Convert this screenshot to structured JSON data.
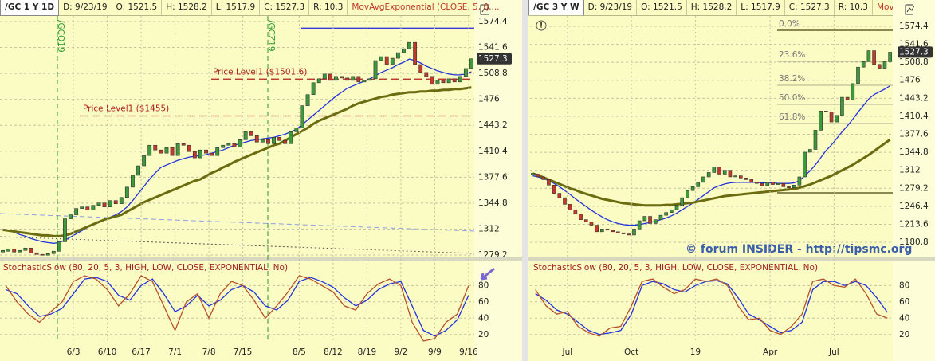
{
  "chart_data": [
    {
      "type": "candlestick",
      "title": "/GC 1 Y 1D",
      "info": [
        "D: 9/23/19",
        "O: 1521.5",
        "H: 1528.2",
        "L: 1517.9",
        "C: 1527.3",
        "R: 10.3"
      ],
      "study": "MovAvgExponential (CLOSE, 5, 0,...",
      "values": [
        1284,
        1287,
        1283,
        1285,
        1288,
        1282,
        1280,
        1279,
        1281,
        1284,
        1296,
        1325,
        1330,
        1338,
        1340,
        1336,
        1342,
        1345,
        1340,
        1348,
        1344,
        1352,
        1365,
        1380,
        1392,
        1405,
        1418,
        1412,
        1408,
        1415,
        1405,
        1420,
        1418,
        1410,
        1402,
        1412,
        1408,
        1405,
        1415,
        1418,
        1420,
        1416,
        1425,
        1435,
        1430,
        1422,
        1425,
        1420,
        1428,
        1424,
        1420,
        1435,
        1440,
        1468,
        1482,
        1497,
        1502,
        1508,
        1500,
        1505,
        1503,
        1500,
        1505,
        1498,
        1500,
        1502,
        1525,
        1530,
        1520,
        1528,
        1535,
        1540,
        1548,
        1520,
        1510,
        1505,
        1495,
        1500,
        1497,
        1502,
        1498,
        1505,
        1515,
        1527.3
      ],
      "up_color": "#3c9a3c",
      "down_color": "#c0392b",
      "series": [
        {
          "color": "#2233dd",
          "values": [
            1312,
            1310,
            1308,
            1305,
            1303,
            1300,
            1298,
            1296,
            1295,
            1294,
            1295,
            1298,
            1302,
            1306,
            1310,
            1314,
            1318,
            1321,
            1324,
            1327,
            1330,
            1334,
            1340,
            1348,
            1357,
            1366,
            1375,
            1383,
            1390,
            1393,
            1396,
            1399,
            1401,
            1403,
            1404,
            1405,
            1406,
            1408,
            1410,
            1412,
            1415,
            1418,
            1420,
            1422,
            1424,
            1425,
            1426,
            1427,
            1428,
            1430,
            1432,
            1435,
            1438,
            1444,
            1450,
            1456,
            1462,
            1468,
            1474,
            1480,
            1485,
            1490,
            1493,
            1496,
            1499,
            1502,
            1506,
            1510,
            1513,
            1516,
            1520,
            1523,
            1527,
            1525,
            1522,
            1518,
            1515,
            1512,
            1510,
            1508,
            1507,
            1507,
            1508,
            1511
          ]
        },
        {
          "color": "#6b6b10",
          "values": [
            1311,
            1310,
            1309,
            1308,
            1307,
            1306,
            1305,
            1304,
            1304,
            1303,
            1303,
            1304,
            1306,
            1309,
            1312,
            1315,
            1318,
            1321,
            1324,
            1326,
            1328,
            1330,
            1334,
            1338,
            1342,
            1346,
            1349,
            1352,
            1355,
            1358,
            1361,
            1364,
            1367,
            1370,
            1373,
            1375,
            1379,
            1383,
            1386,
            1390,
            1393,
            1397,
            1400,
            1403,
            1406,
            1409,
            1412,
            1415,
            1418,
            1420,
            1424,
            1428,
            1432,
            1436,
            1440,
            1445,
            1449,
            1452,
            1455,
            1458,
            1461,
            1464,
            1468,
            1471,
            1473,
            1475,
            1477,
            1479,
            1480,
            1482,
            1483,
            1484,
            1485,
            1485,
            1486,
            1486,
            1487,
            1487,
            1488,
            1488,
            1489,
            1489,
            1490,
            1491
          ]
        }
      ],
      "ylim": [
        1277.2,
        1601.6
      ],
      "yticks": [
        1574.4,
        1541.6,
        1508.8,
        1476,
        1443.2,
        1410.4,
        1377.6,
        1344.8,
        1312,
        1279.2
      ],
      "grid": true,
      "last_price": 1527.3,
      "levels": [
        {
          "label": "Price Level1 ($1501.6)",
          "value": 1501.6
        },
        {
          "label": "Price Level1 ($1455)",
          "value": 1455
        }
      ],
      "lines": [
        {
          "value": 1566,
          "color": "#3a3adc"
        }
      ],
      "markers": [
        "/GCQ19",
        "/GCZ19"
      ]
    },
    {
      "type": "line",
      "title": "StochasticSlow (80, 20, 5, 3, HIGH, LOW, CLOSE, EXPONENTIAL, No)",
      "categories": [
        null,
        null,
        null,
        null,
        null,
        null,
        "6/3",
        null,
        null,
        "6/10",
        null,
        null,
        "6/17",
        null,
        null,
        "7/1",
        null,
        null,
        "7/8",
        null,
        null,
        "7/15",
        null,
        null,
        null,
        null,
        "8/5",
        null,
        null,
        "8/12",
        null,
        null,
        "8/19",
        null,
        null,
        "9/2",
        null,
        null,
        "9/9",
        null,
        null,
        "9/16"
      ],
      "series": [
        {
          "color": "#2233dd",
          "values": [
            75,
            70,
            55,
            42,
            45,
            52,
            70,
            88,
            90,
            85,
            68,
            62,
            80,
            88,
            70,
            48,
            55,
            68,
            55,
            62,
            75,
            80,
            72,
            55,
            50,
            62,
            85,
            90,
            85,
            78,
            65,
            55,
            62,
            75,
            82,
            85,
            55,
            25,
            18,
            25,
            38,
            68
          ]
        },
        {
          "color": "#b5502a",
          "values": [
            80,
            60,
            45,
            35,
            48,
            60,
            85,
            92,
            88,
            75,
            55,
            70,
            92,
            85,
            55,
            25,
            60,
            70,
            40,
            70,
            85,
            80,
            62,
            40,
            55,
            72,
            92,
            88,
            80,
            72,
            55,
            50,
            70,
            82,
            88,
            80,
            35,
            12,
            15,
            35,
            45,
            80
          ]
        }
      ],
      "ylim": [
        10,
        93
      ],
      "yticks": [
        20,
        40,
        60,
        80
      ],
      "grid": true
    },
    {
      "type": "candlestick",
      "title": "/GC 3 Y W",
      "info": [
        "D: 9/23/19",
        "O: 1521.5",
        "H: 1528.2",
        "L: 1517.9",
        "C: 1527.3",
        "R: 10.3"
      ],
      "study": "MovAvg...",
      "values": [
        1305,
        1300,
        1295,
        1285,
        1270,
        1262,
        1250,
        1240,
        1232,
        1222,
        1218,
        1212,
        1200,
        1205,
        1203,
        1200,
        1198,
        1196,
        1194,
        1205,
        1220,
        1228,
        1215,
        1222,
        1230,
        1235,
        1240,
        1248,
        1262,
        1275,
        1282,
        1290,
        1300,
        1308,
        1318,
        1305,
        1312,
        1300,
        1302,
        1298,
        1295,
        1290,
        1288,
        1284,
        1290,
        1286,
        1288,
        1282,
        1280,
        1285,
        1300,
        1345,
        1350,
        1385,
        1420,
        1418,
        1400,
        1412,
        1445,
        1440,
        1470,
        1500,
        1510,
        1530,
        1505,
        1498,
        1510,
        1527.3
      ],
      "up_color": "#3c9a3c",
      "down_color": "#c0392b",
      "series": [
        {
          "color": "#2233dd",
          "values": [
            1302,
            1300,
            1297,
            1293,
            1288,
            1282,
            1275,
            1268,
            1260,
            1253,
            1246,
            1239,
            1233,
            1227,
            1222,
            1218,
            1215,
            1213,
            1212,
            1212,
            1213,
            1215,
            1217,
            1219,
            1222,
            1225,
            1229,
            1234,
            1240,
            1246,
            1252,
            1259,
            1266,
            1273,
            1280,
            1284,
            1287,
            1289,
            1290,
            1290,
            1290,
            1290,
            1290,
            1289,
            1289,
            1289,
            1288,
            1288,
            1288,
            1289,
            1293,
            1302,
            1311,
            1322,
            1335,
            1348,
            1358,
            1370,
            1382,
            1393,
            1405,
            1418,
            1430,
            1442,
            1450,
            1455,
            1460,
            1466
          ]
        },
        {
          "color": "#6b6b10",
          "values": [
            1306,
            1303,
            1299,
            1295,
            1291,
            1287,
            1283,
            1279,
            1276,
            1272,
            1269,
            1266,
            1263,
            1260,
            1258,
            1256,
            1254,
            1252,
            1251,
            1250,
            1249,
            1248,
            1248,
            1248,
            1248,
            1249,
            1249,
            1250,
            1251,
            1252,
            1253,
            1255,
            1257,
            1259,
            1261,
            1263,
            1265,
            1266,
            1267,
            1268,
            1269,
            1270,
            1271,
            1272,
            1273,
            1274,
            1275,
            1276,
            1277,
            1278,
            1280,
            1283,
            1286,
            1290,
            1294,
            1298,
            1302,
            1307,
            1312,
            1317,
            1322,
            1328,
            1334,
            1340,
            1347,
            1354,
            1361,
            1368
          ]
        }
      ],
      "ylim": [
        1154.7,
        1622.3
      ],
      "yticks": [
        1574.4,
        1541.6,
        1508.8,
        1476,
        1443.2,
        1410.4,
        1377.6,
        1344.8,
        1312,
        1279.2,
        1246.4,
        1213.6,
        1180.8
      ],
      "grid": true,
      "last_price": 1527.3,
      "fib": [
        {
          "label": "0.0%",
          "value": 1567.1
        },
        {
          "label": "23.6%",
          "value": 1510.5
        },
        {
          "label": "38.2%",
          "value": 1467
        },
        {
          "label": "50.0%",
          "value": 1432
        },
        {
          "label": "61.8%",
          "value": 1397.2
        },
        {
          "value": 1270.9
        }
      ],
      "watermark": "© forum INSIDER - http://tipsmc.org"
    },
    {
      "type": "line",
      "title": "StochasticSlow (80, 20, 5, 3, HIGH, LOW, CLOSE, EXPONENTIAL, No)",
      "categories": [
        null,
        null,
        null,
        "Jul",
        null,
        null,
        null,
        null,
        null,
        "Oct",
        null,
        null,
        null,
        null,
        null,
        "19",
        null,
        null,
        null,
        null,
        null,
        null,
        "Apr",
        null,
        null,
        null,
        null,
        null,
        "Jul",
        null,
        null,
        null,
        null,
        null
      ],
      "series": [
        {
          "color": "#2233dd",
          "values": [
            70,
            62,
            50,
            45,
            35,
            25,
            20,
            22,
            25,
            45,
            80,
            85,
            82,
            75,
            72,
            80,
            85,
            86,
            82,
            65,
            45,
            38,
            30,
            22,
            25,
            35,
            75,
            85,
            85,
            80,
            85,
            80,
            65,
            47
          ]
        },
        {
          "color": "#b5502a",
          "values": [
            75,
            55,
            45,
            48,
            30,
            22,
            18,
            28,
            30,
            55,
            85,
            88,
            78,
            70,
            75,
            88,
            85,
            88,
            80,
            55,
            38,
            40,
            25,
            20,
            30,
            45,
            85,
            88,
            80,
            78,
            88,
            70,
            45,
            40
          ]
        }
      ],
      "ylim": [
        10,
        93
      ],
      "yticks": [
        20,
        40,
        60,
        80
      ],
      "grid": true
    }
  ]
}
